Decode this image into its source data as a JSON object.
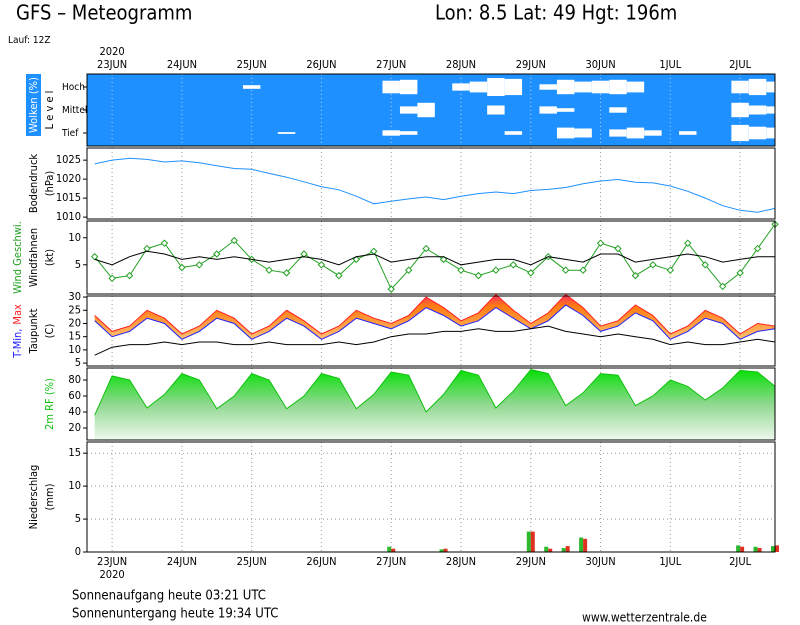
{
  "header": {
    "title": "GFS – Meteogramm",
    "location": "Lon: 8.5 Lat: 49 Hgt: 196m",
    "run": "Lauf: 12Z"
  },
  "footer": {
    "sunrise": "Sonnenaufgang heute 03:21 UTC",
    "sunset": "Sonnenuntergang heute 19:34 UTC",
    "source": "www.wetterzentrale.de"
  },
  "chart_data": [
    {
      "type": "cloud",
      "ylabel": [
        "Wolken (%)",
        "L e v e l"
      ],
      "ylabel_background": "#1e90ff",
      "background": "#1e90ff",
      "year_label": "2020",
      "xtick_labels": "top",
      "xlim": [
        -0.36,
        9.5
      ],
      "xticks": [
        {
          "value": 0,
          "label": "23JUN"
        },
        {
          "value": 1,
          "label": "24JUN"
        },
        {
          "value": 2,
          "label": "25JUN"
        },
        {
          "value": 3,
          "label": "26JUN"
        },
        {
          "value": 4,
          "label": "27JUN"
        },
        {
          "value": 5,
          "label": "28JUN"
        },
        {
          "value": 6,
          "label": "29JUN"
        },
        {
          "value": 7,
          "label": "30JUN"
        },
        {
          "value": 8,
          "label": "1JUL"
        },
        {
          "value": 9,
          "label": "2JUL"
        }
      ],
      "x": [
        -0.25,
        0,
        0.25,
        0.5,
        0.75,
        1,
        1.25,
        1.5,
        1.75,
        2,
        2.25,
        2.5,
        2.75,
        3,
        3.25,
        3.5,
        3.75,
        4,
        4.25,
        4.5,
        4.75,
        5,
        5.25,
        5.5,
        5.75,
        6,
        6.25,
        6.5,
        6.75,
        7,
        7.25,
        7.5,
        7.75,
        8,
        8.25,
        8.5,
        8.75,
        9,
        9.25,
        9.5
      ],
      "series": [
        {
          "name": "Hoch",
          "color": "#ffffff",
          "values": [
            0,
            0,
            0,
            0,
            0,
            0,
            0,
            0,
            0,
            20,
            0,
            0,
            0,
            0,
            0,
            0,
            0,
            70,
            80,
            0,
            0,
            40,
            60,
            100,
            90,
            0,
            30,
            80,
            60,
            70,
            80,
            60,
            0,
            0,
            0,
            0,
            0,
            70,
            90,
            60
          ]
        },
        {
          "name": "Mittel",
          "color": "#ffffff",
          "values": [
            0,
            0,
            0,
            0,
            0,
            0,
            0,
            0,
            0,
            0,
            0,
            0,
            0,
            0,
            0,
            0,
            0,
            0,
            40,
            80,
            0,
            0,
            0,
            50,
            0,
            0,
            40,
            20,
            0,
            0,
            30,
            0,
            0,
            0,
            0,
            0,
            0,
            80,
            50,
            40
          ]
        },
        {
          "name": "Tief",
          "color": "#ffffff",
          "values": [
            0,
            0,
            0,
            0,
            0,
            0,
            0,
            0,
            0,
            0,
            0,
            10,
            0,
            0,
            0,
            0,
            0,
            30,
            20,
            0,
            0,
            0,
            0,
            0,
            20,
            0,
            0,
            60,
            50,
            0,
            40,
            60,
            30,
            0,
            20,
            0,
            0,
            90,
            70,
            60
          ]
        }
      ]
    },
    {
      "type": "line",
      "ylabel": [
        "Bodendruck",
        "(hPa)"
      ],
      "xlim": [
        -0.36,
        9.5
      ],
      "xticks": [
        0,
        1,
        2,
        3,
        4,
        5,
        6,
        7,
        8,
        9
      ],
      "ylim": [
        1009.5,
        1028.2
      ],
      "yticks": [
        1010,
        1015,
        1020,
        1025
      ],
      "x": [
        -0.25,
        0,
        0.25,
        0.5,
        0.75,
        1,
        1.25,
        1.5,
        1.75,
        2,
        2.25,
        2.5,
        2.75,
        3,
        3.25,
        3.5,
        3.75,
        4,
        4.25,
        4.5,
        4.75,
        5,
        5.25,
        5.5,
        5.75,
        6,
        6.25,
        6.5,
        6.75,
        7,
        7.25,
        7.5,
        7.75,
        8,
        8.25,
        8.5,
        8.75,
        9,
        9.25,
        9.5
      ],
      "series": [
        {
          "color": "#1e90ff",
          "values": [
            1024.0,
            1025.0,
            1025.5,
            1025.2,
            1024.5,
            1024.8,
            1024.3,
            1023.5,
            1022.8,
            1022.6,
            1021.5,
            1020.5,
            1019.3,
            1018.0,
            1017.2,
            1015.5,
            1013.5,
            1014.2,
            1014.8,
            1015.3,
            1014.6,
            1015.5,
            1016.2,
            1016.6,
            1016.2,
            1017.0,
            1017.3,
            1017.8,
            1018.8,
            1019.5,
            1019.9,
            1019.2,
            1019.0,
            1018.2,
            1016.8,
            1015.0,
            1013.0,
            1011.8,
            1011.3,
            1012.3
          ]
        }
      ]
    },
    {
      "type": "line",
      "ylabel": [
        "(kt)"
      ],
      "xlim": [
        -0.36,
        9.5
      ],
      "xticks": [
        0,
        1,
        2,
        3,
        4,
        5,
        6,
        7,
        8,
        9
      ],
      "ylim": [
        -0.4,
        13.1
      ],
      "yticks": [
        5,
        10
      ],
      "x": [
        -0.25,
        0,
        0.25,
        0.5,
        0.75,
        1,
        1.25,
        1.5,
        1.75,
        2,
        2.25,
        2.5,
        2.75,
        3,
        3.25,
        3.5,
        3.75,
        4,
        4.25,
        4.5,
        4.75,
        5,
        5.25,
        5.5,
        5.75,
        6,
        6.25,
        6.5,
        6.75,
        7,
        7.25,
        7.5,
        7.75,
        8,
        8.25,
        8.5,
        8.75,
        9,
        9.25,
        9.5
      ],
      "series": [
        {
          "name": "Wind Geschwi.",
          "color": "#22a022",
          "marker": "diamond",
          "values": [
            6.5,
            2.5,
            3,
            8,
            9,
            4.5,
            5,
            7,
            9.5,
            6,
            4,
            3.5,
            7,
            5,
            3,
            6,
            7.5,
            0.5,
            4,
            8,
            6,
            4,
            3,
            4,
            5,
            3.5,
            6.5,
            4,
            4,
            9,
            8,
            3,
            5,
            4,
            9,
            5,
            1,
            3.5,
            8,
            12.5
          ]
        },
        {
          "name": "Windfahnen",
          "color": "#000000",
          "values": [
            6,
            5,
            6.5,
            7.5,
            7,
            6,
            6.5,
            6,
            6.5,
            6,
            5.5,
            6,
            6.5,
            6,
            5,
            6.5,
            7,
            5.5,
            6,
            6.5,
            6.5,
            5,
            5.5,
            6,
            6,
            5,
            6.5,
            6,
            5.5,
            7,
            7,
            5.5,
            6,
            6.5,
            7,
            6.5,
            5.5,
            6,
            6.5,
            6.5
          ]
        }
      ]
    },
    {
      "type": "band",
      "ylabel": [
        "(C)"
      ],
      "xlim": [
        -0.36,
        9.5
      ],
      "xticks": [
        0,
        1,
        2,
        3,
        4,
        5,
        6,
        7,
        8,
        9
      ],
      "ylim": [
        3.9,
        30.4
      ],
      "yticks": [
        5,
        10,
        15,
        20,
        25,
        30
      ],
      "x": [
        -0.25,
        0,
        0.25,
        0.5,
        0.75,
        1,
        1.25,
        1.5,
        1.75,
        2,
        2.25,
        2.5,
        2.75,
        3,
        3.25,
        3.5,
        3.75,
        4,
        4.25,
        4.5,
        4.75,
        5,
        5.25,
        5.5,
        5.75,
        6,
        6.25,
        6.5,
        6.75,
        7,
        7.25,
        7.5,
        7.75,
        8,
        8.25,
        8.5,
        8.75,
        9,
        9.25,
        9.5
      ],
      "series": [
        {
          "name": "T-Min,",
          "color": "#2020ff",
          "values": [
            21,
            15,
            17,
            22,
            20,
            14,
            17,
            22,
            20,
            14,
            17,
            22,
            19,
            14,
            17,
            22,
            20,
            18,
            21,
            26,
            23,
            19,
            21,
            26,
            22,
            18,
            21,
            27,
            23,
            17,
            19,
            24,
            21,
            14,
            17,
            22,
            20,
            14,
            17,
            18
          ]
        },
        {
          "name": "Max",
          "color": "#ff2020",
          "values": [
            23,
            17,
            19,
            25,
            22,
            16,
            19,
            25,
            22,
            16,
            19,
            25,
            21,
            16,
            19,
            25,
            22,
            20,
            23,
            30,
            26,
            21,
            24,
            31,
            25,
            20,
            24,
            31,
            26,
            19,
            21,
            27,
            23,
            16,
            19,
            25,
            22,
            16,
            20,
            19
          ]
        },
        {
          "name": "Taupunkt",
          "color": "#000000",
          "values": [
            8,
            11,
            12,
            12,
            13,
            12,
            13,
            13,
            12,
            12,
            13,
            12,
            12,
            12,
            13,
            12,
            13,
            15,
            16,
            16,
            17,
            17,
            18,
            17,
            17,
            18,
            19,
            17,
            16,
            15,
            16,
            15,
            14,
            12,
            13,
            12,
            12,
            13,
            14,
            13
          ]
        }
      ]
    },
    {
      "type": "area",
      "xlim": [
        -0.36,
        9.5
      ],
      "xticks": [
        0,
        1,
        2,
        3,
        4,
        5,
        6,
        7,
        8,
        9
      ],
      "ylim": [
        5,
        95
      ],
      "yticks": [
        20,
        40,
        60,
        80
      ],
      "x": [
        -0.25,
        0,
        0.25,
        0.5,
        0.75,
        1,
        1.25,
        1.5,
        1.75,
        2,
        2.25,
        2.5,
        2.75,
        3,
        3.25,
        3.5,
        3.75,
        4,
        4.25,
        4.5,
        4.75,
        5,
        5.25,
        5.5,
        5.75,
        6,
        6.25,
        6.5,
        6.75,
        7,
        7.25,
        7.5,
        7.75,
        8,
        8.25,
        8.5,
        8.75,
        9,
        9.25,
        9.5
      ],
      "series": [
        {
          "name": "2m RF (%)",
          "color": "#10c010",
          "values": [
            36,
            85,
            80,
            45,
            62,
            88,
            80,
            44,
            60,
            88,
            80,
            44,
            60,
            88,
            82,
            44,
            62,
            90,
            86,
            40,
            62,
            92,
            86,
            45,
            66,
            93,
            88,
            48,
            64,
            88,
            86,
            48,
            60,
            80,
            72,
            55,
            70,
            92,
            90,
            72
          ]
        }
      ]
    },
    {
      "type": "bar",
      "ylabel": [
        "Niederschlag",
        "(mm)"
      ],
      "year_label": "2020",
      "xtick_labels": "bottom",
      "ygrid": true,
      "xlim": [
        -0.36,
        9.5
      ],
      "ylim": [
        0,
        16.7
      ],
      "yticks": [
        0,
        5,
        10,
        15
      ],
      "xticks": [
        {
          "value": 0,
          "label": "23JUN"
        },
        {
          "value": 1,
          "label": "24JUN"
        },
        {
          "value": 2,
          "label": "25JUN"
        },
        {
          "value": 3,
          "label": "26JUN"
        },
        {
          "value": 4,
          "label": "27JUN"
        },
        {
          "value": 5,
          "label": "28JUN"
        },
        {
          "value": 6,
          "label": "29JUN"
        },
        {
          "value": 7,
          "label": "30JUN"
        },
        {
          "value": 8,
          "label": "1JUL"
        },
        {
          "value": 9,
          "label": "2JUL"
        }
      ],
      "x": [
        -0.25,
        0,
        0.25,
        0.5,
        0.75,
        1,
        1.25,
        1.5,
        1.75,
        2,
        2.25,
        2.5,
        2.75,
        3,
        3.25,
        3.5,
        3.75,
        4,
        4.25,
        4.5,
        4.75,
        5,
        5.25,
        5.5,
        5.75,
        6,
        6.25,
        6.5,
        6.75,
        7,
        7.25,
        7.5,
        7.75,
        8,
        8.25,
        8.5,
        8.75,
        9,
        9.25,
        9.5
      ],
      "series": [
        {
          "color": "#2db82d",
          "values": [
            0,
            0,
            0,
            0,
            0,
            0,
            0,
            0,
            0,
            0,
            0,
            0,
            0,
            0,
            0,
            0,
            0,
            0.8,
            0,
            0,
            0.4,
            0,
            0,
            0,
            0,
            3.1,
            0.8,
            0.6,
            2.2,
            0,
            0,
            0,
            0,
            0,
            0,
            0,
            0,
            1.0,
            0.8,
            0.9
          ]
        },
        {
          "color": "#e03020",
          "values": [
            0,
            0,
            0,
            0,
            0,
            0,
            0,
            0,
            0,
            0,
            0,
            0,
            0,
            0,
            0,
            0,
            0,
            0.5,
            0,
            0,
            0.5,
            0,
            0,
            0,
            0,
            3.1,
            0.5,
            0.9,
            2.0,
            0,
            0,
            0,
            0,
            0,
            0,
            0,
            0,
            0.8,
            0.6,
            1.0
          ]
        }
      ]
    }
  ]
}
